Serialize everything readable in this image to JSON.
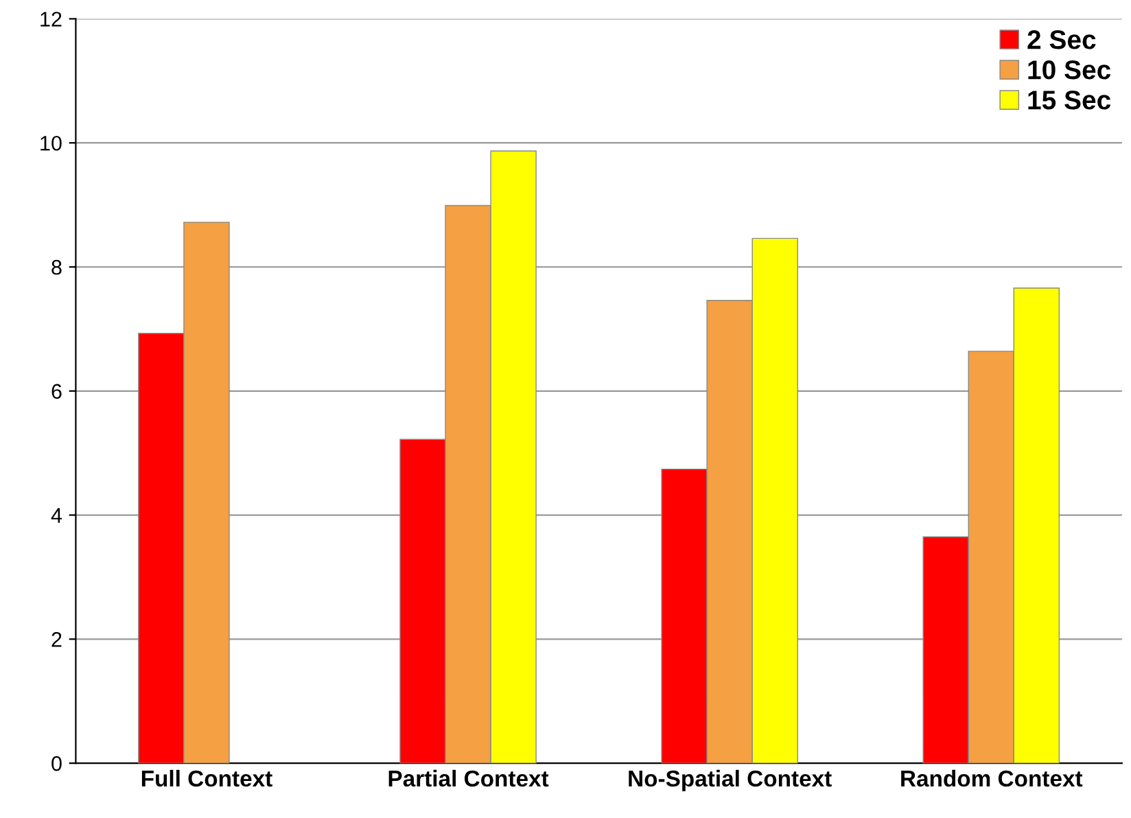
{
  "chart_data": {
    "type": "bar",
    "categories": [
      "Full Context",
      "Partial Context",
      "No-Spatial Context",
      "Random Context"
    ],
    "series": [
      {
        "name": "2 Sec",
        "color": "#ff0000",
        "values": [
          6.93,
          5.22,
          4.74,
          3.65
        ]
      },
      {
        "name": "10 Sec",
        "color": "#f5a042",
        "values": [
          8.72,
          8.99,
          7.46,
          6.64
        ]
      },
      {
        "name": "15 Sec",
        "color": "#ffff00",
        "values": [
          null,
          9.87,
          8.46,
          7.66
        ]
      }
    ],
    "ylim": [
      0,
      12
    ],
    "yticks": [
      0,
      2,
      4,
      6,
      8,
      10,
      12
    ],
    "grid": "y",
    "legend": "top right"
  }
}
